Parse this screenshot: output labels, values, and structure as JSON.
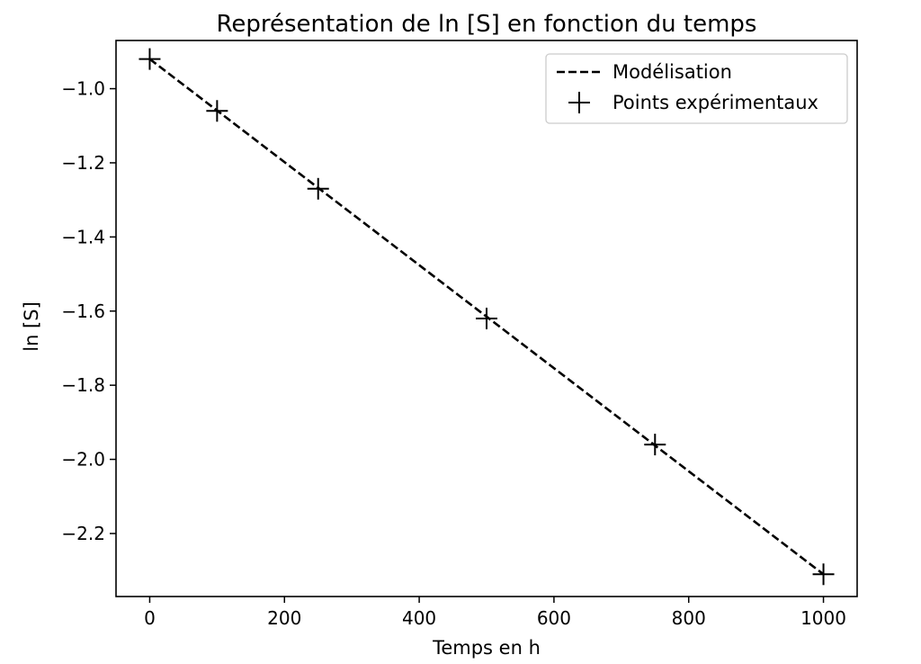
{
  "chart_data": {
    "type": "line",
    "title": "Représentation de ln [S] en fonction du temps",
    "xlabel": "Temps en h",
    "ylabel": "ln [S]",
    "xlim": [
      -50,
      1050
    ],
    "ylim": [
      -2.37,
      -0.87
    ],
    "xticks": [
      0,
      200,
      400,
      600,
      800,
      1000
    ],
    "yticks": [
      -1.0,
      -1.2,
      -1.4,
      -1.6,
      -1.8,
      -2.0,
      -2.2
    ],
    "xtick_labels": [
      "0",
      "200",
      "400",
      "600",
      "800",
      "1000"
    ],
    "ytick_labels": [
      "−1.0",
      "−1.2",
      "−1.4",
      "−1.6",
      "−1.8",
      "−2.0",
      "−2.2"
    ],
    "grid": false,
    "legend_position": "upper-right",
    "series": [
      {
        "name": "Modélisation",
        "style": "dashed-line",
        "color": "#000000",
        "x": [
          0,
          1000
        ],
        "y": [
          -0.92,
          -2.31
        ]
      },
      {
        "name": "Points expérimentaux",
        "style": "plus-markers",
        "color": "#000000",
        "x": [
          0,
          100,
          250,
          500,
          750,
          1000
        ],
        "y": [
          -0.92,
          -1.06,
          -1.27,
          -1.62,
          -1.96,
          -2.31
        ]
      }
    ]
  }
}
